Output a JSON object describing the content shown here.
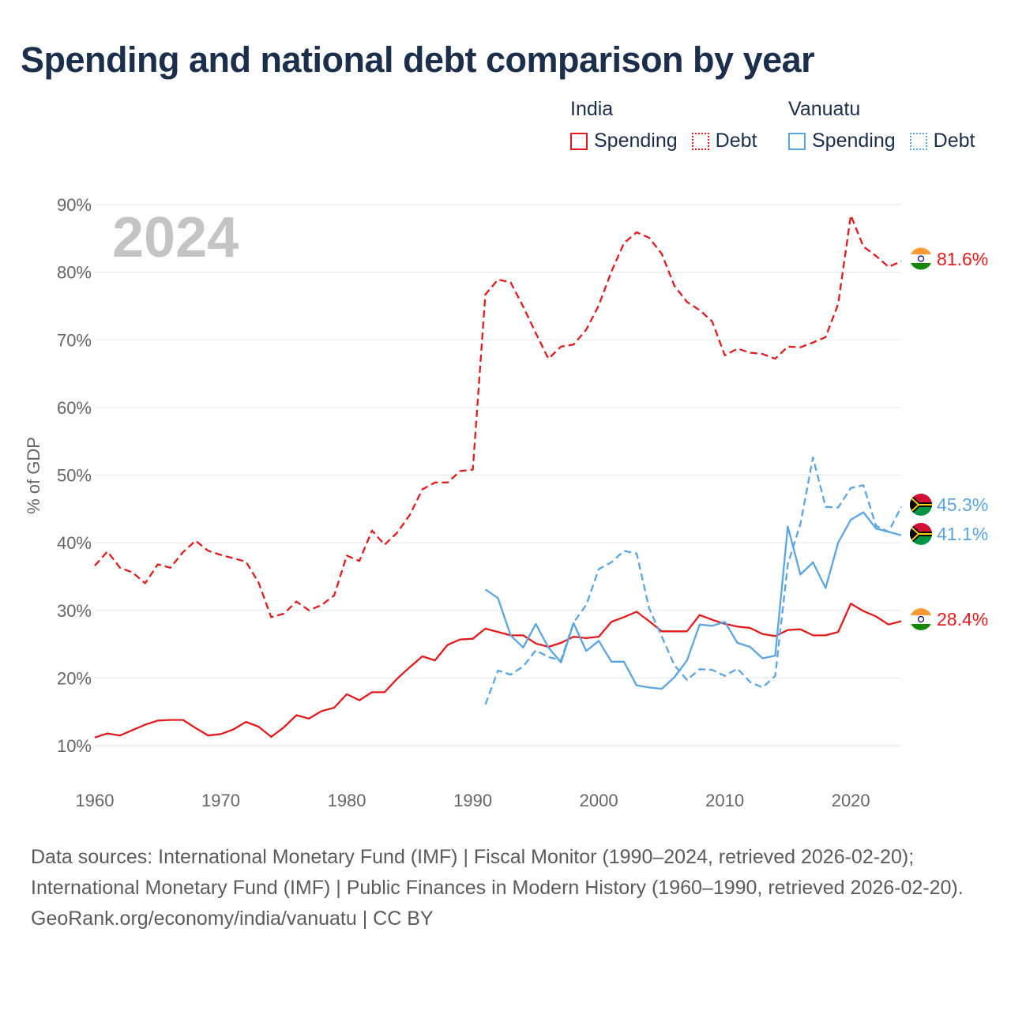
{
  "title": "Spending and national debt comparison by year",
  "legend": [
    {
      "country": "India",
      "color": "#e31a1c",
      "items": [
        {
          "label": "Spending",
          "style": "solid"
        },
        {
          "label": "Debt",
          "style": "dotted"
        }
      ]
    },
    {
      "country": "Vanuatu",
      "color": "#5aa5e2",
      "items": [
        {
          "label": "Spending",
          "style": "solid"
        },
        {
          "label": "Debt",
          "style": "dotted"
        }
      ]
    }
  ],
  "chart_data": {
    "type": "line",
    "year_label": "2024",
    "ylabel": "% of GDP",
    "xlim": [
      1960,
      2024
    ],
    "ylim": [
      10,
      90
    ],
    "yticks": [
      10,
      20,
      30,
      40,
      50,
      60,
      70,
      80,
      90
    ],
    "ytick_labels": [
      "10%",
      "20%",
      "30%",
      "40%",
      "50%",
      "60%",
      "70%",
      "80%",
      "90%"
    ],
    "xticks": [
      1960,
      1970,
      1980,
      1990,
      2000,
      2010,
      2020
    ],
    "xtick_labels": [
      "1960",
      "1970",
      "1980",
      "1990",
      "2000",
      "2010",
      "2020"
    ],
    "series": [
      {
        "id": "india-debt",
        "name": "India Debt",
        "country": "India",
        "flag": "india",
        "color": "#e31a1c",
        "dash": "dashed",
        "end_label": "81.6%",
        "x": [
          1960,
          1961,
          1962,
          1963,
          1964,
          1965,
          1966,
          1967,
          1968,
          1969,
          1970,
          1971,
          1972,
          1973,
          1974,
          1975,
          1976,
          1977,
          1978,
          1979,
          1980,
          1981,
          1982,
          1983,
          1984,
          1985,
          1986,
          1987,
          1988,
          1989,
          1990,
          1991,
          1992,
          1993,
          1994,
          1995,
          1996,
          1997,
          1998,
          1999,
          2000,
          2001,
          2002,
          2003,
          2004,
          2005,
          2006,
          2007,
          2008,
          2009,
          2010,
          2011,
          2012,
          2013,
          2014,
          2015,
          2016,
          2017,
          2018,
          2019,
          2020,
          2021,
          2022,
          2023,
          2024
        ],
        "values": [
          36.6,
          38.7,
          36.3,
          35.6,
          34.0,
          36.8,
          36.3,
          38.6,
          40.3,
          38.8,
          38.2,
          37.7,
          37.2,
          34.1,
          29.0,
          29.5,
          31.3,
          30.0,
          30.8,
          32.2,
          38.1,
          37.3,
          41.8,
          39.7,
          41.5,
          44.1,
          47.9,
          48.9,
          48.9,
          50.6,
          50.8,
          76.7,
          78.9,
          78.5,
          74.9,
          71.0,
          67.2,
          69.0,
          69.3,
          71.5,
          75.1,
          80.1,
          84.3,
          85.9,
          85.1,
          82.7,
          78.0,
          75.6,
          74.4,
          72.7,
          67.7,
          68.7,
          68.1,
          67.9,
          67.2,
          69.0,
          68.9,
          69.6,
          70.4,
          75.3,
          88.4,
          83.8,
          82.4,
          80.8,
          81.6
        ]
      },
      {
        "id": "india-spending",
        "name": "India Spending",
        "country": "India",
        "flag": "india",
        "color": "#e31a1c",
        "dash": "solid",
        "end_label": "28.4%",
        "x": [
          1960,
          1961,
          1962,
          1963,
          1964,
          1965,
          1966,
          1967,
          1968,
          1969,
          1970,
          1971,
          1972,
          1973,
          1974,
          1975,
          1976,
          1977,
          1978,
          1979,
          1980,
          1981,
          1982,
          1983,
          1984,
          1985,
          1986,
          1987,
          1988,
          1989,
          1990,
          1991,
          1992,
          1993,
          1994,
          1995,
          1996,
          1997,
          1998,
          1999,
          2000,
          2001,
          2002,
          2003,
          2004,
          2005,
          2006,
          2007,
          2008,
          2009,
          2010,
          2011,
          2012,
          2013,
          2014,
          2015,
          2016,
          2017,
          2018,
          2019,
          2020,
          2021,
          2022,
          2023,
          2024
        ],
        "values": [
          11.2,
          11.8,
          11.5,
          12.3,
          13.1,
          13.7,
          13.8,
          13.8,
          12.6,
          11.5,
          11.7,
          12.4,
          13.5,
          12.8,
          11.3,
          12.7,
          14.5,
          14.0,
          15.1,
          15.6,
          17.6,
          16.7,
          17.9,
          17.9,
          19.9,
          21.6,
          23.2,
          22.6,
          24.9,
          25.7,
          25.8,
          27.3,
          26.8,
          26.3,
          26.3,
          25.1,
          24.6,
          25.2,
          26.1,
          25.9,
          26.1,
          28.3,
          29.0,
          29.8,
          28.4,
          26.9,
          26.9,
          26.9,
          29.3,
          28.6,
          28.0,
          27.6,
          27.4,
          26.5,
          26.2,
          27.1,
          27.2,
          26.3,
          26.3,
          26.8,
          31.0,
          29.9,
          29.1,
          27.9,
          28.4
        ]
      },
      {
        "id": "vanuatu-debt",
        "name": "Vanuatu Debt",
        "country": "Vanuatu",
        "flag": "vanuatu",
        "color": "#5aa5e2",
        "dash": "dashed",
        "end_label": "45.3%",
        "x": [
          1991,
          1992,
          1993,
          1994,
          1995,
          1996,
          1997,
          1998,
          1999,
          2000,
          2001,
          2002,
          2003,
          2004,
          2005,
          2006,
          2007,
          2008,
          2009,
          2010,
          2011,
          2012,
          2013,
          2014,
          2015,
          2016,
          2017,
          2018,
          2019,
          2020,
          2021,
          2022,
          2023,
          2024
        ],
        "values": [
          16.1,
          21.1,
          20.5,
          21.7,
          24.1,
          23.1,
          22.6,
          28.2,
          30.8,
          36.1,
          37.1,
          38.8,
          38.4,
          30.3,
          26.1,
          21.9,
          19.7,
          21.3,
          21.2,
          20.3,
          21.4,
          19.4,
          18.6,
          20.3,
          36.8,
          42.8,
          52.6,
          45.3,
          45.2,
          48.1,
          48.5,
          42.5,
          41.6,
          45.3
        ]
      },
      {
        "id": "vanuatu-spending",
        "name": "Vanuatu Spending",
        "country": "Vanuatu",
        "flag": "vanuatu",
        "color": "#5aa5e2",
        "dash": "solid",
        "end_label": "41.1%",
        "x": [
          1991,
          1992,
          1993,
          1994,
          1995,
          1996,
          1997,
          1998,
          1999,
          2000,
          2001,
          2002,
          2003,
          2004,
          2005,
          2006,
          2007,
          2008,
          2009,
          2010,
          2011,
          2012,
          2013,
          2014,
          2015,
          2016,
          2017,
          2018,
          2019,
          2020,
          2021,
          2022,
          2023,
          2024
        ],
        "values": [
          33.1,
          31.8,
          26.3,
          24.5,
          28.0,
          24.5,
          22.3,
          28.1,
          24.0,
          25.5,
          22.4,
          22.4,
          18.9,
          18.6,
          18.4,
          20.1,
          22.6,
          27.9,
          27.7,
          28.3,
          25.2,
          24.6,
          22.9,
          23.3,
          42.4,
          35.3,
          37.1,
          33.3,
          40.0,
          43.4,
          44.5,
          42.1,
          41.6,
          41.1
        ]
      }
    ]
  },
  "footer": {
    "sources": "Data sources: International Monetary Fund (IMF) | Fiscal Monitor (1990–2024, retrieved 2026-02-20); International Monetary Fund (IMF) | Public Finances in Modern History (1960–1990, retrieved 2026-02-20).",
    "credit": "GeoRank.org/economy/india/vanuatu | CC BY"
  }
}
